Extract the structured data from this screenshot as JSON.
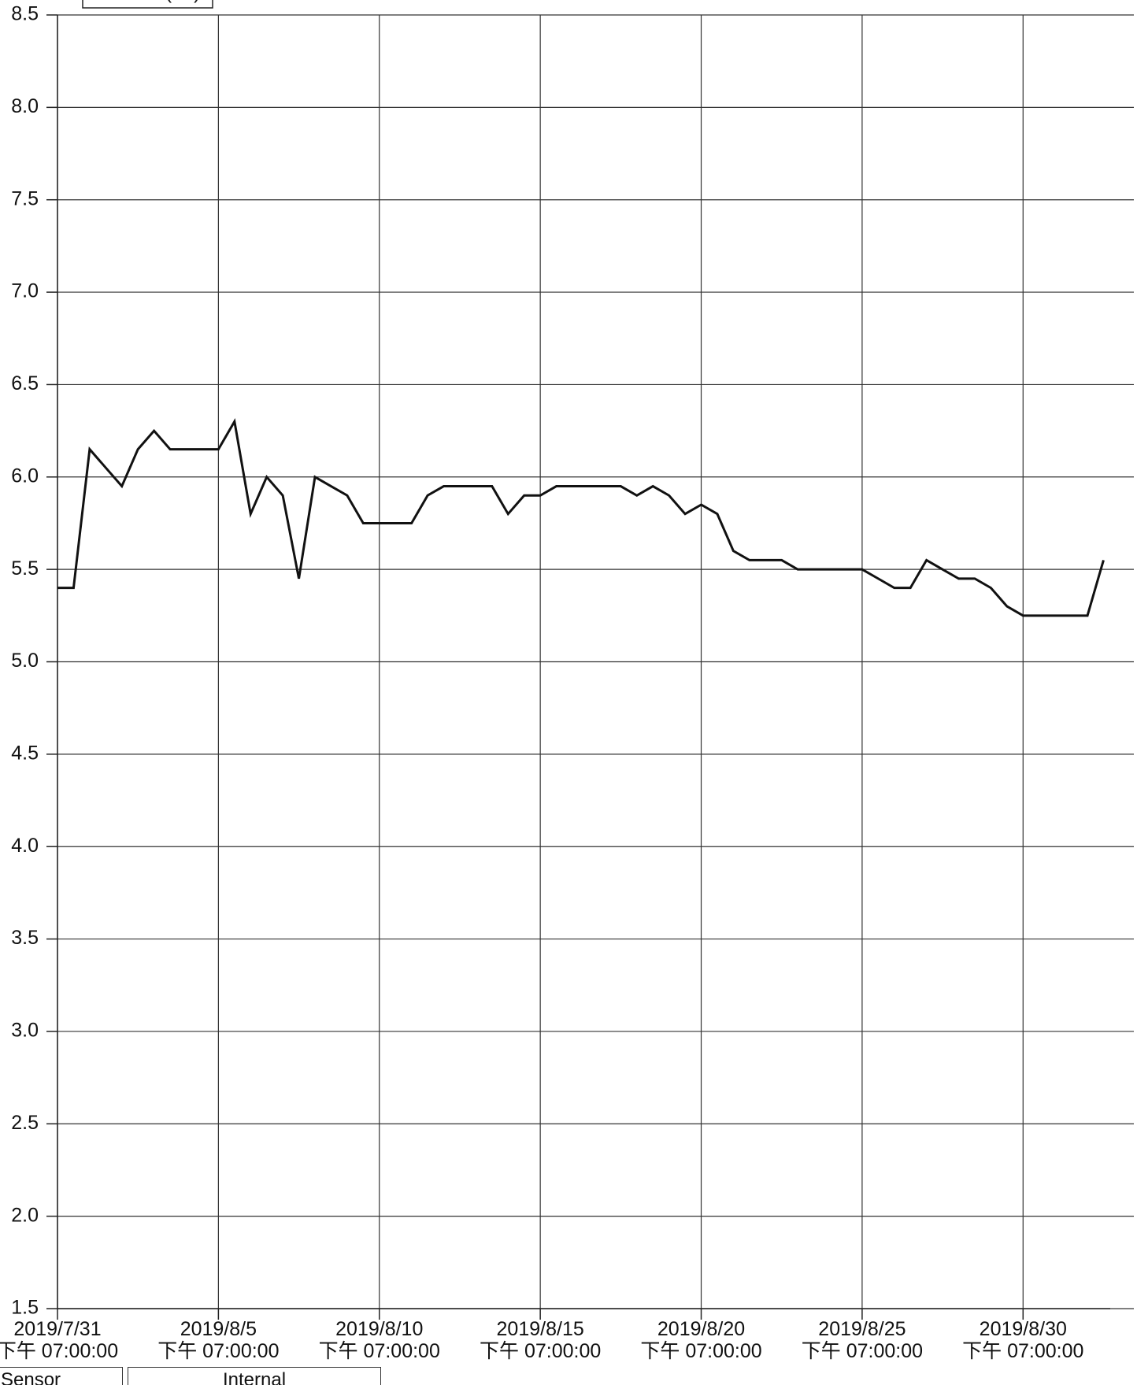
{
  "chart_data": {
    "type": "line",
    "x": [
      "2019/7/31 19:00",
      "2019/8/1 07:00",
      "2019/8/1 19:00",
      "2019/8/2 07:00",
      "2019/8/2 19:00",
      "2019/8/3 07:00",
      "2019/8/3 19:00",
      "2019/8/4 07:00",
      "2019/8/4 19:00",
      "2019/8/5 07:00",
      "2019/8/5 19:00",
      "2019/8/6 07:00",
      "2019/8/6 19:00",
      "2019/8/7 07:00",
      "2019/8/7 19:00",
      "2019/8/8 07:00",
      "2019/8/8 19:00",
      "2019/8/9 07:00",
      "2019/8/9 19:00",
      "2019/8/10 07:00",
      "2019/8/10 19:00",
      "2019/8/11 07:00",
      "2019/8/11 19:00",
      "2019/8/12 07:00",
      "2019/8/12 19:00",
      "2019/8/13 07:00",
      "2019/8/13 19:00",
      "2019/8/14 07:00",
      "2019/8/14 19:00",
      "2019/8/15 07:00",
      "2019/8/15 19:00",
      "2019/8/16 07:00",
      "2019/8/16 19:00",
      "2019/8/17 07:00",
      "2019/8/17 19:00",
      "2019/8/18 07:00",
      "2019/8/18 19:00",
      "2019/8/19 07:00",
      "2019/8/19 19:00",
      "2019/8/20 07:00",
      "2019/8/20 19:00",
      "2019/8/21 07:00",
      "2019/8/21 19:00",
      "2019/8/22 07:00",
      "2019/8/22 19:00",
      "2019/8/23 07:00",
      "2019/8/23 19:00",
      "2019/8/24 07:00",
      "2019/8/24 19:00",
      "2019/8/25 07:00",
      "2019/8/25 19:00",
      "2019/8/26 07:00",
      "2019/8/26 19:00",
      "2019/8/27 07:00",
      "2019/8/27 19:00",
      "2019/8/28 07:00",
      "2019/8/28 19:00",
      "2019/8/29 07:00",
      "2019/8/29 19:00",
      "2019/8/30 07:00",
      "2019/8/30 19:00",
      "2019/8/31 07:00",
      "2019/8/31 19:00",
      "2019/9/1 07:00",
      "2019/9/1 19:00",
      "2019/9/2 07:00"
    ],
    "series": [
      {
        "name": "Internal (°C)",
        "color": "#111111",
        "values": [
          5.4,
          5.4,
          6.15,
          6.05,
          5.95,
          6.15,
          6.25,
          6.15,
          6.15,
          6.15,
          6.15,
          6.3,
          5.8,
          6.0,
          5.9,
          5.45,
          6.0,
          5.95,
          5.9,
          5.75,
          5.75,
          5.75,
          5.75,
          5.9,
          5.95,
          5.95,
          5.95,
          5.95,
          5.8,
          5.9,
          5.9,
          5.95,
          5.95,
          5.95,
          5.95,
          5.95,
          5.9,
          5.95,
          5.9,
          5.8,
          5.85,
          5.8,
          5.6,
          5.55,
          5.55,
          5.55,
          5.5,
          5.5,
          5.5,
          5.5,
          5.5,
          5.45,
          5.4,
          5.4,
          5.55,
          5.5,
          5.45,
          5.45,
          5.4,
          5.3,
          5.25,
          5.25,
          5.25,
          5.25,
          5.25,
          5.55
        ]
      }
    ],
    "xlim": [
      "2019/7/31 19:00",
      "2019/9/2 12:00"
    ],
    "xticks": [
      {
        "value": "2019/7/31 19:00",
        "label": "2019/7/31\n下午 07:00:00"
      },
      {
        "value": "2019/8/5 19:00",
        "label": "2019/8/5\n下午 07:00:00"
      },
      {
        "value": "2019/8/10 19:00",
        "label": "2019/8/10\n下午 07:00:00"
      },
      {
        "value": "2019/8/15 19:00",
        "label": "2019/8/15\n下午 07:00:00"
      },
      {
        "value": "2019/8/20 19:00",
        "label": "2019/8/20\n下午 07:00:00"
      },
      {
        "value": "2019/8/25 19:00",
        "label": "2019/8/25\n下午 07:00:00"
      },
      {
        "value": "2019/8/30 19:00",
        "label": "2019/8/30\n下午 07:00:00"
      }
    ],
    "ylim": [
      1.5,
      8.5
    ],
    "yticks": [
      {
        "value": 1.5,
        "label": "1.5"
      },
      {
        "value": 2,
        "label": "2.0"
      },
      {
        "value": 2.5,
        "label": "2.5"
      },
      {
        "value": 3,
        "label": "3.0"
      },
      {
        "value": 3.5,
        "label": "3.5"
      },
      {
        "value": 4,
        "label": "4.0"
      },
      {
        "value": 4.5,
        "label": "4.5"
      },
      {
        "value": 5,
        "label": "5.0"
      },
      {
        "value": 5.5,
        "label": "5.5"
      },
      {
        "value": 6,
        "label": "6.0"
      },
      {
        "value": 6.5,
        "label": "6.5"
      },
      {
        "value": 7,
        "label": "7.0"
      },
      {
        "value": 7.5,
        "label": "7.5"
      },
      {
        "value": 8,
        "label": "8.0"
      },
      {
        "value": 8.5,
        "label": "8.5"
      }
    ],
    "grid": true,
    "legend": "top-left"
  },
  "table": {
    "header": "Sensor Name",
    "value": "Internal"
  }
}
